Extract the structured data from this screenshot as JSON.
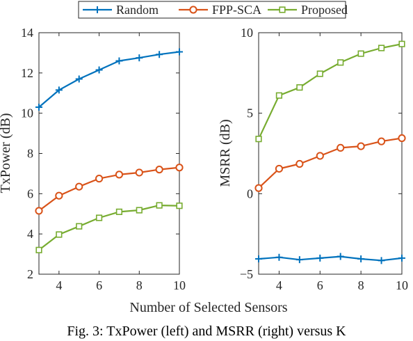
{
  "legend": {
    "entries": [
      "Random",
      "FPP-SCA",
      "Proposed"
    ],
    "placement": "top-center"
  },
  "xlabel": "Number of Selected Sensors",
  "caption": "Fig. 3: TxPower (left) and MSRR (right) versus K",
  "colors": {
    "Random": "#0072bd",
    "FPP-SCA": "#d95319",
    "Proposed": "#77ac30"
  },
  "markers": {
    "Random": "plus",
    "FPP-SCA": "circle",
    "Proposed": "square"
  },
  "chart_data": [
    {
      "type": "line",
      "ylabel": "TxPower (dB)",
      "x": [
        3,
        4,
        5,
        6,
        7,
        8,
        9,
        10
      ],
      "xlim": [
        3,
        10
      ],
      "ylim": [
        2,
        14
      ],
      "xticks": [
        4,
        6,
        8,
        10
      ],
      "yticks": [
        2,
        4,
        6,
        8,
        10,
        12,
        14
      ],
      "grid": false,
      "series": [
        {
          "name": "Random",
          "values": [
            10.3,
            11.15,
            11.7,
            12.15,
            12.6,
            12.75,
            12.92,
            13.05
          ]
        },
        {
          "name": "FPP-SCA",
          "values": [
            5.15,
            5.9,
            6.35,
            6.75,
            6.95,
            7.05,
            7.2,
            7.3
          ]
        },
        {
          "name": "Proposed",
          "values": [
            3.2,
            3.97,
            4.38,
            4.8,
            5.1,
            5.18,
            5.42,
            5.4
          ]
        }
      ]
    },
    {
      "type": "line",
      "ylabel": "MSRR (dB)",
      "x": [
        3,
        4,
        5,
        6,
        7,
        8,
        9,
        10
      ],
      "xlim": [
        3,
        10
      ],
      "ylim": [
        -5,
        10
      ],
      "xticks": [
        4,
        6,
        8,
        10
      ],
      "yticks": [
        -5,
        0,
        5,
        10
      ],
      "grid": false,
      "series": [
        {
          "name": "Random",
          "values": [
            -4.05,
            -3.95,
            -4.1,
            -4.0,
            -3.9,
            -4.05,
            -4.15,
            -4.0
          ]
        },
        {
          "name": "FPP-SCA",
          "values": [
            0.35,
            1.55,
            1.85,
            2.35,
            2.85,
            2.95,
            3.25,
            3.45
          ]
        },
        {
          "name": "Proposed",
          "values": [
            3.4,
            6.1,
            6.6,
            7.45,
            8.15,
            8.7,
            9.05,
            9.3
          ]
        }
      ]
    }
  ]
}
